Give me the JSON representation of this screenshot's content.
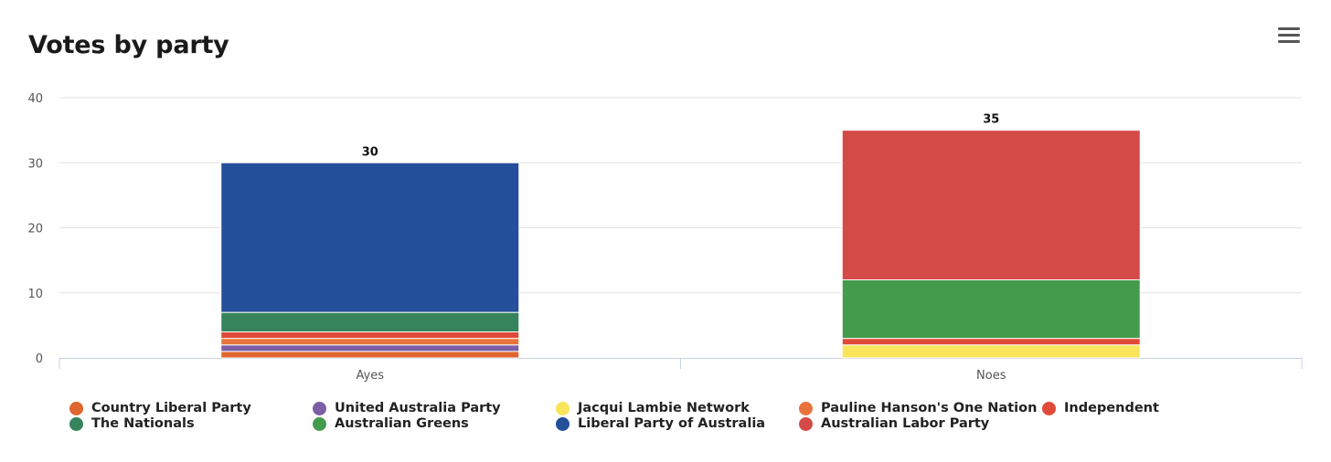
{
  "title": "Votes by party",
  "menu_icon": "hamburger-menu-icon",
  "chart_data": {
    "type": "bar",
    "stacked": true,
    "title": "Votes by party",
    "xlabel": "",
    "ylabel": "",
    "ylim": [
      0,
      40
    ],
    "yticks": [
      0,
      10,
      20,
      30,
      40
    ],
    "categories": [
      "Ayes",
      "Noes"
    ],
    "totals": [
      30,
      35
    ],
    "grid": true,
    "legend_position": "bottom",
    "series": [
      {
        "name": "Country Liberal Party",
        "color": "#e0662e",
        "values": [
          1,
          0
        ]
      },
      {
        "name": "United Australia Party",
        "color": "#7b5ea7",
        "values": [
          1,
          0
        ]
      },
      {
        "name": "Jacqui Lambie Network",
        "color": "#f9e45c",
        "values": [
          0,
          2
        ]
      },
      {
        "name": "Pauline Hanson's One Nation",
        "color": "#e8743b",
        "values": [
          1,
          0
        ]
      },
      {
        "name": "Independent",
        "color": "#e04a38",
        "values": [
          1,
          1
        ]
      },
      {
        "name": "The Nationals",
        "color": "#35845c",
        "values": [
          3,
          0
        ]
      },
      {
        "name": "Australian Greens",
        "color": "#449b4b",
        "values": [
          0,
          9
        ]
      },
      {
        "name": "Liberal Party of Australia",
        "color": "#244f9a",
        "values": [
          23,
          0
        ]
      },
      {
        "name": "Australian Labor Party",
        "color": "#d44a47",
        "values": [
          0,
          23
        ]
      }
    ]
  }
}
